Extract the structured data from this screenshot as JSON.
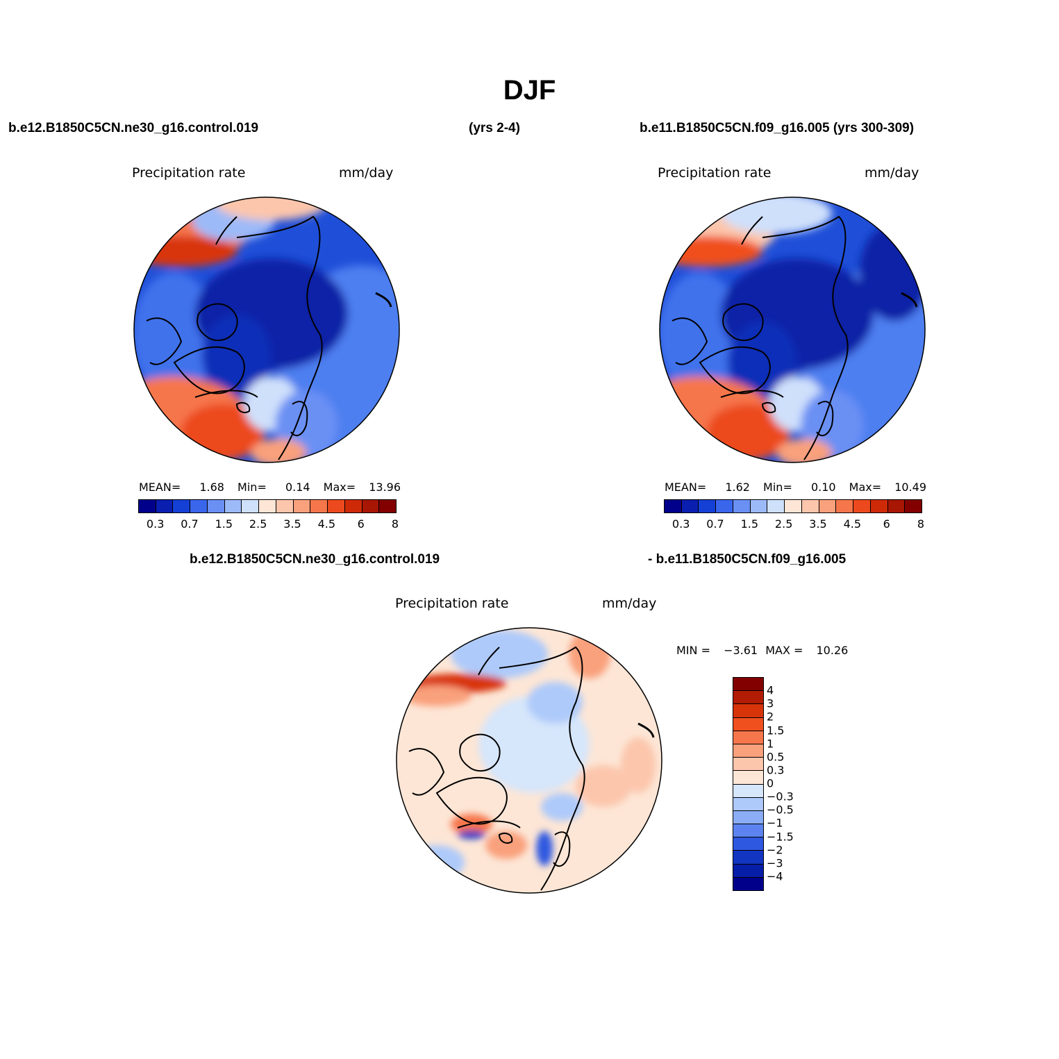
{
  "title": "DJF",
  "top_left_case": "b.e12.B1850C5CN.ne30_g16.control.019",
  "top_left_years": "(yrs 2-4)",
  "top_right_case": "b.e11.B1850C5CN.f09_g16.005 (yrs 300-309)",
  "bottom_case_a": "b.e12.B1850C5CN.ne30_g16.control.019",
  "bottom_case_b": "- b.e11.B1850C5CN.f09_g16.005",
  "panels": {
    "left": {
      "variable": "Precipitation rate",
      "units": "mm/day",
      "mean_label": "MEAN=",
      "mean": "1.68",
      "min_label": "Min=",
      "min": "0.14",
      "max_label": "Max=",
      "max": "13.96"
    },
    "right": {
      "variable": "Precipitation rate",
      "units": "mm/day",
      "mean_label": "MEAN=",
      "mean": "1.62",
      "min_label": "Min=",
      "min": "0.10",
      "max_label": "Max=",
      "max": "10.49"
    },
    "diff": {
      "variable": "Precipitation rate",
      "units": "mm/day",
      "min_label": "MIN =",
      "min": "−3.61",
      "max_label": "MAX =",
      "max": "10.26"
    }
  },
  "abs_colorbar": {
    "colors": [
      "#00008b",
      "#0a1fb0",
      "#1540d6",
      "#3a66ec",
      "#6a90f4",
      "#9dbaf8",
      "#cfe0fb",
      "#fde6d6",
      "#fcc6ac",
      "#f9a07c",
      "#f6764c",
      "#ec4a1e",
      "#cf2a08",
      "#a81604",
      "#820000"
    ],
    "labels": [
      "0.3",
      "0.7",
      "1.5",
      "2.5",
      "3.5",
      "4.5",
      "6",
      "8"
    ]
  },
  "diff_colorbar": {
    "colors": [
      "#820000",
      "#b31c04",
      "#d8340a",
      "#f04f1e",
      "#f6764c",
      "#f9a07c",
      "#fcc6ac",
      "#fde6d6",
      "#d6e6fb",
      "#aecafa",
      "#8aadf6",
      "#5c83ef",
      "#2f58e0",
      "#1235c2",
      "#071ea8",
      "#00008b"
    ],
    "labels": [
      "4",
      "3",
      "2",
      "1.5",
      "1",
      "0.5",
      "0.3",
      "0",
      "−0.3",
      "−0.5",
      "−1",
      "−1.5",
      "−2",
      "−3",
      "−4"
    ]
  }
}
